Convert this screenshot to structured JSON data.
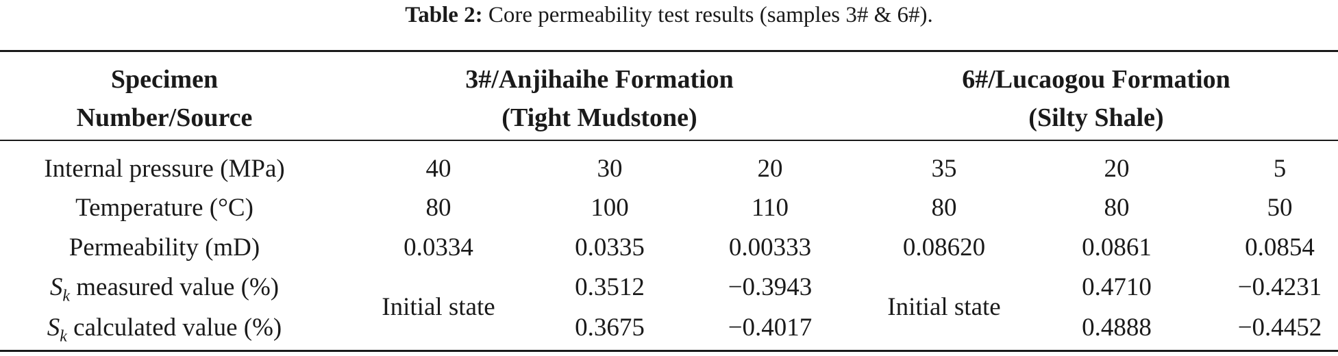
{
  "caption": {
    "label": "Table 2:",
    "text": " Core permeability test results (samples 3# & 6#)."
  },
  "header": {
    "col1_line1": "Specimen",
    "col1_line2": "Number/Source",
    "group1_line1": "3#/Anjihaihe Formation",
    "group1_line2": "(Tight Mudstone)",
    "group2_line1": "6#/Lucaogou Formation",
    "group2_line2": "(Silty Shale)"
  },
  "rows": [
    {
      "label": "Internal pressure (MPa)",
      "values": [
        "40",
        "30",
        "20",
        "35",
        "20",
        "5"
      ]
    },
    {
      "label": "Temperature (°C)",
      "values": [
        "80",
        "100",
        "110",
        "80",
        "80",
        "50"
      ]
    },
    {
      "label": "Permeability (mD)",
      "values": [
        "0.0334",
        "0.0335",
        "0.00333",
        "0.08620",
        "0.0861",
        "0.0854"
      ]
    }
  ],
  "sk_rows": {
    "symbol": "S",
    "subscript": "k",
    "measured_label": " measured value (%)",
    "calculated_label": " calculated value (%)",
    "initial_state_3": "Initial state",
    "initial_state_6": "Initial state",
    "measured_values": [
      "0.3512",
      "−0.3943",
      "0.4710",
      "−0.4231"
    ],
    "calculated_values": [
      "0.3675",
      "−0.4017",
      "0.4888",
      "−0.4452"
    ]
  }
}
